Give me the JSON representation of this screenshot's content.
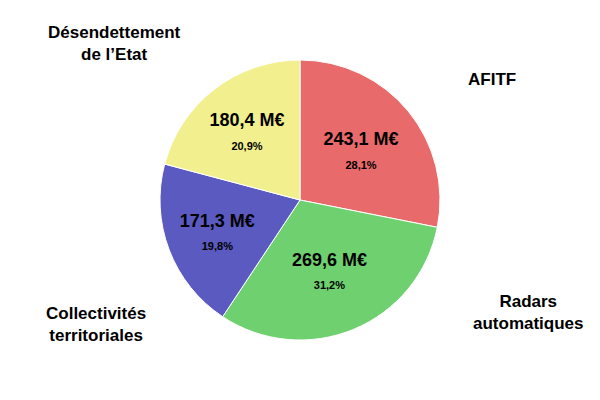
{
  "chart_data": {
    "type": "pie",
    "categories": [
      "AFITF",
      "Radars automatiques",
      "Collectivités territoriales",
      "Désendettement de l’Etat"
    ],
    "values": [
      243.1,
      269.6,
      171.3,
      180.4
    ],
    "value_labels": [
      "243,1 M€",
      "269,6 M€",
      "171,3 M€",
      "180,4 M€"
    ],
    "percent_labels": [
      "28,1%",
      "31,2%",
      "19,8%",
      "20,9%"
    ],
    "colors": [
      "#e86a6a",
      "#6fd06f",
      "#5a5ac0",
      "#f2f08e"
    ],
    "data_labels": true
  }
}
